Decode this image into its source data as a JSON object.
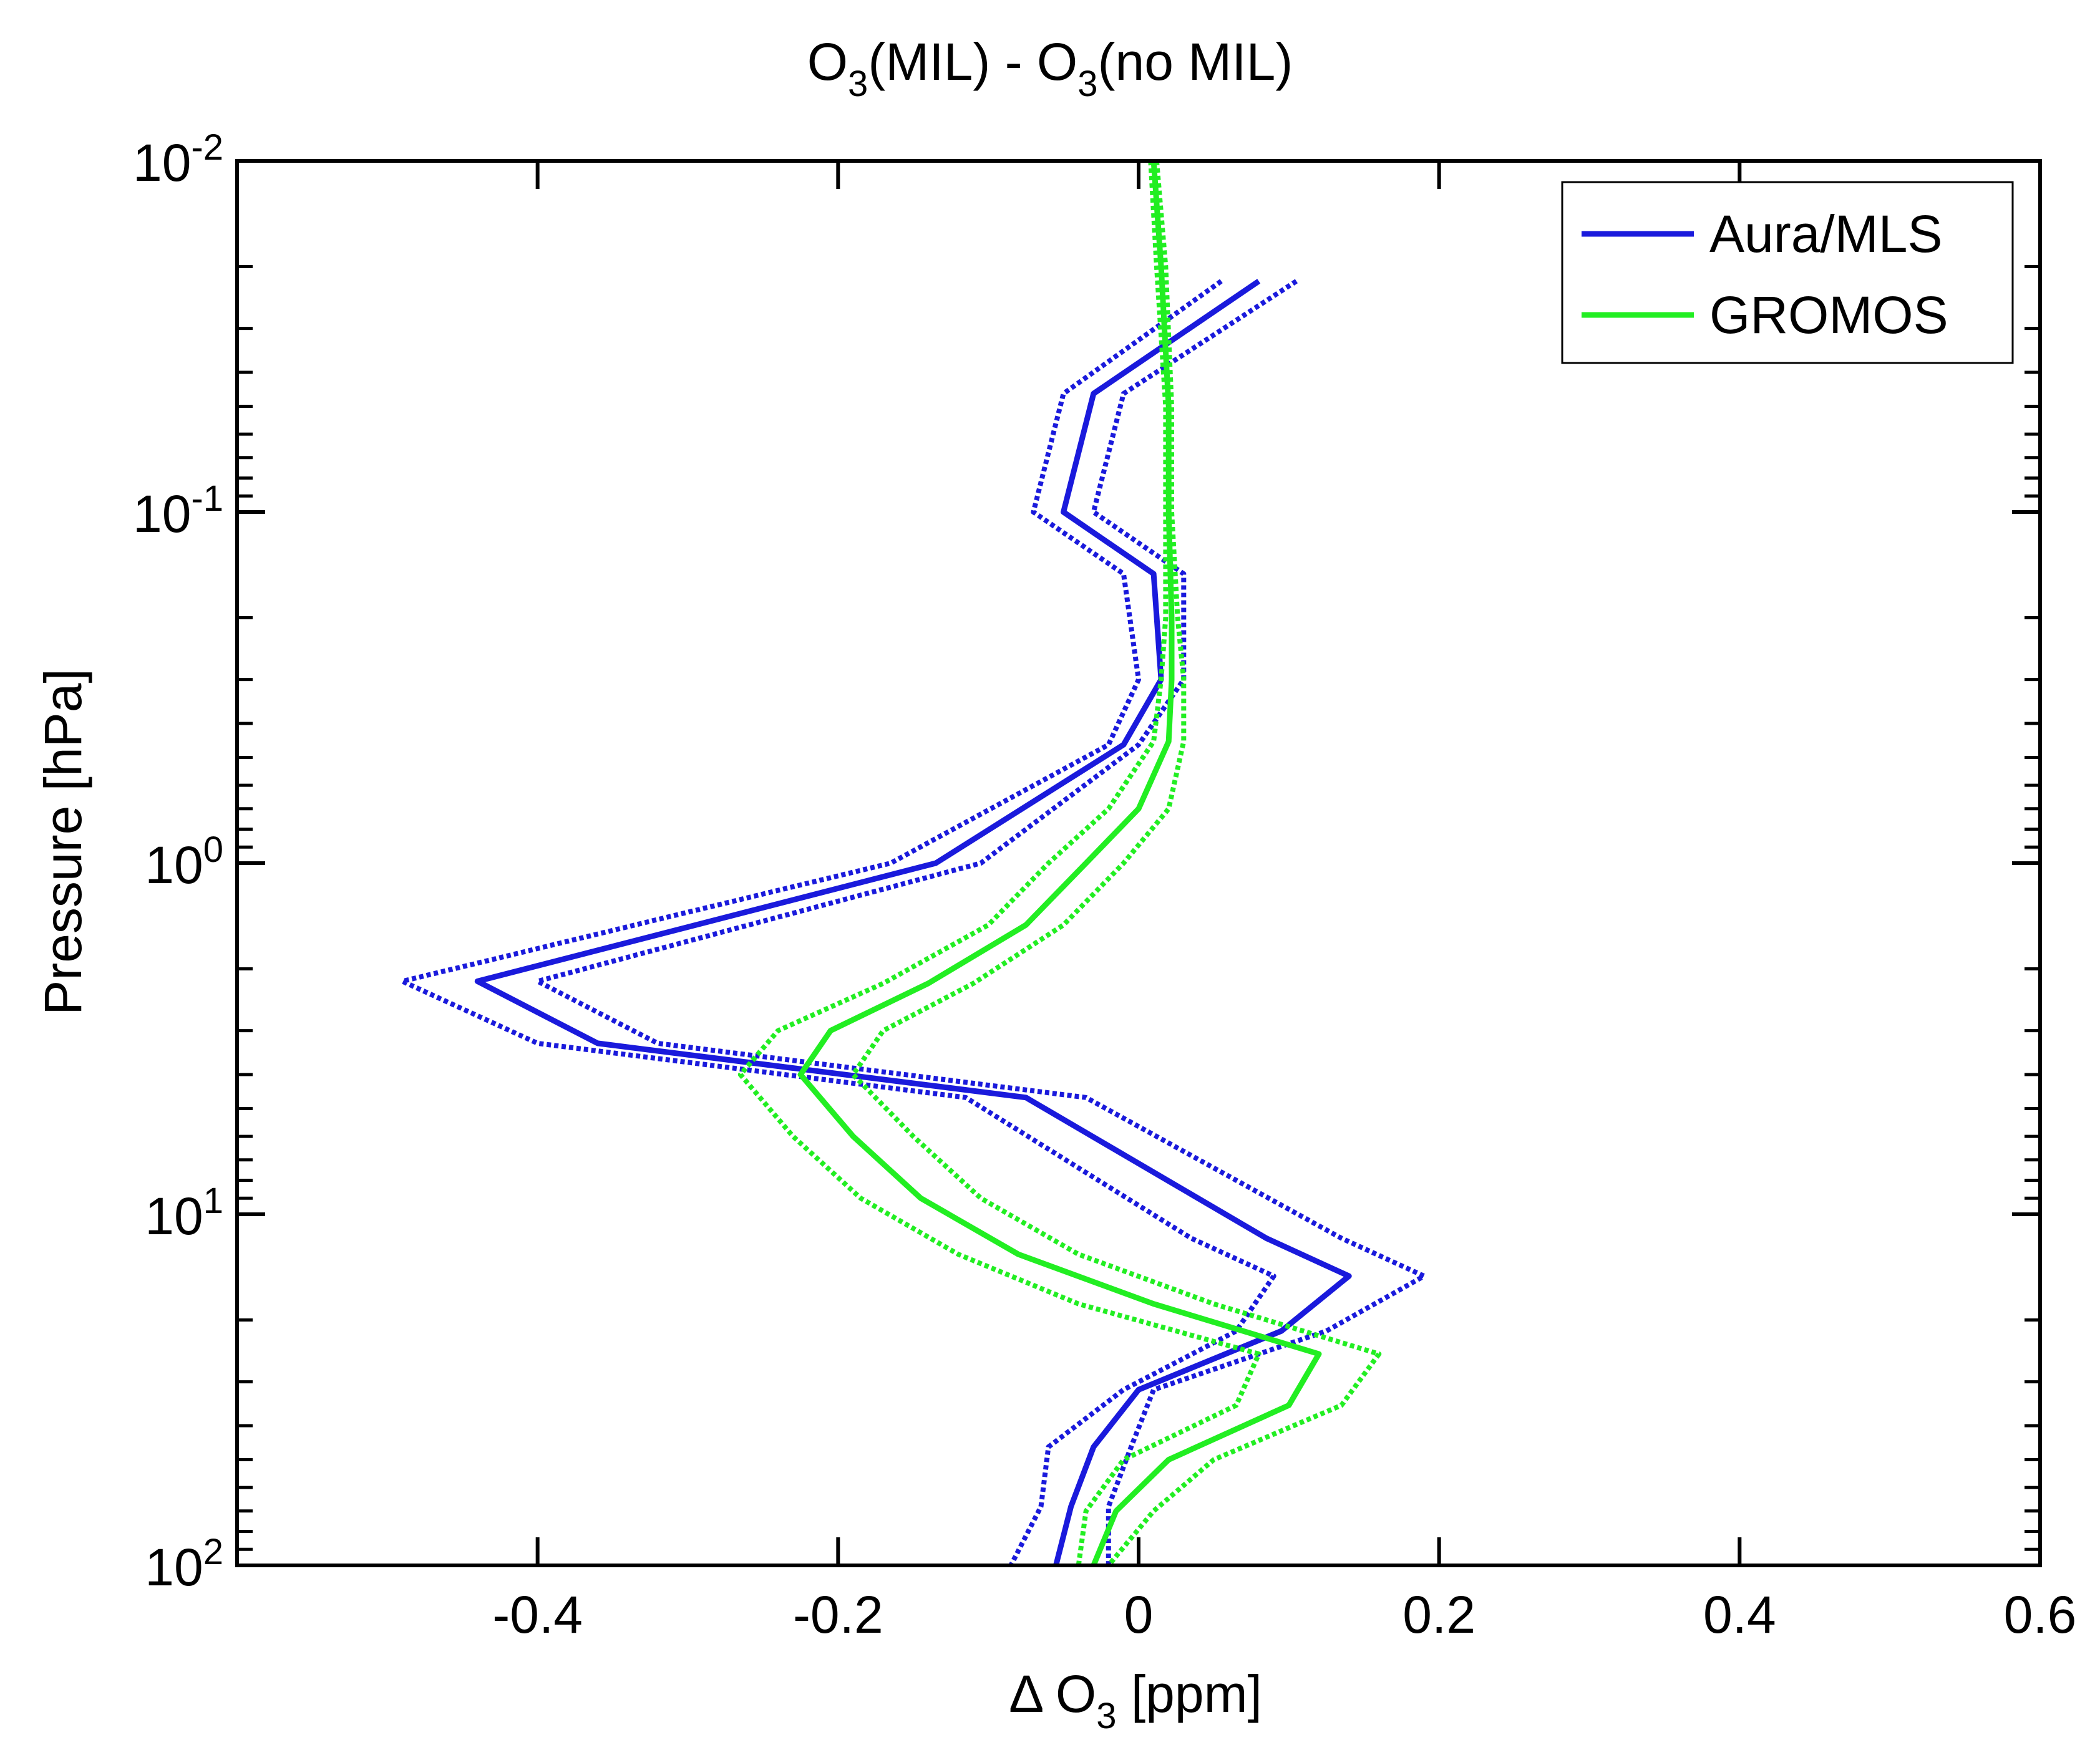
{
  "chart_data": {
    "type": "line",
    "title": {
      "main": "O",
      "sub1": "3",
      "mid": "(MIL) - O",
      "sub2": "3",
      "end": "(no MIL)"
    },
    "xlabel": {
      "main": "Δ O",
      "sub": "3",
      "end": " [ppm]"
    },
    "ylabel": "Pressure [hPa]",
    "xlim": [
      -0.6,
      0.6
    ],
    "ylim": [
      100,
      0.01
    ],
    "yscale": "log",
    "x_ticks": [
      {
        "v": -0.4,
        "label": "-0.4"
      },
      {
        "v": -0.2,
        "label": "-0.2"
      },
      {
        "v": 0,
        "label": "0"
      },
      {
        "v": 0.2,
        "label": "0.2"
      },
      {
        "v": 0.4,
        "label": "0.4"
      },
      {
        "v": 0.6,
        "label": "0.6"
      }
    ],
    "y_ticks": [
      {
        "v": 0.01,
        "base": "10",
        "exp": "-2"
      },
      {
        "v": 0.1,
        "base": "10",
        "exp": "-1"
      },
      {
        "v": 1,
        "base": "10",
        "exp": "0"
      },
      {
        "v": 10,
        "base": "10",
        "exp": "1"
      },
      {
        "v": 100,
        "base": "10",
        "exp": "2"
      }
    ],
    "legend": {
      "position": "top-right",
      "entries": [
        "Aura/MLS",
        "GROMOS"
      ]
    },
    "series": [
      {
        "name": "Aura/MLS",
        "color": "#1a1adc",
        "p": [
          0.022,
          0.046,
          0.1,
          0.15,
          0.3,
          0.46,
          1.0,
          2.17,
          3.26,
          4.65,
          11.7,
          15.0,
          21.5,
          31.6,
          46.0,
          68.0,
          100.0
        ],
        "mean": [
          0.08,
          -0.03,
          -0.05,
          0.01,
          0.015,
          -0.01,
          -0.135,
          -0.44,
          -0.36,
          -0.075,
          0.085,
          0.14,
          0.095,
          0.0,
          -0.03,
          -0.045,
          -0.055
        ],
        "upper": [
          0.105,
          -0.01,
          -0.03,
          0.03,
          0.03,
          0.0,
          -0.105,
          -0.4,
          -0.32,
          -0.035,
          0.135,
          0.19,
          0.125,
          0.01,
          -0.005,
          -0.02,
          -0.02
        ],
        "lower": [
          0.055,
          -0.05,
          -0.07,
          -0.01,
          0.0,
          -0.02,
          -0.165,
          -0.49,
          -0.4,
          -0.115,
          0.035,
          0.09,
          0.065,
          -0.01,
          -0.06,
          -0.065,
          -0.085
        ]
      },
      {
        "name": "GROMOS",
        "color": "#22ee22",
        "p": [
          0.01,
          0.02,
          0.05,
          0.1,
          0.2,
          0.3,
          0.45,
          0.7,
          1.0,
          1.5,
          2.2,
          3.0,
          4.0,
          6.0,
          9.0,
          13.0,
          18.0,
          25.0,
          35.0,
          50.0,
          70.0,
          100.0
        ],
        "mean": [
          0.01,
          0.015,
          0.02,
          0.02,
          0.022,
          0.022,
          0.02,
          0.0,
          -0.035,
          -0.075,
          -0.14,
          -0.205,
          -0.225,
          -0.19,
          -0.145,
          -0.08,
          0.01,
          0.12,
          0.1,
          0.02,
          -0.015,
          -0.03
        ],
        "upper": [
          0.012,
          0.018,
          0.022,
          0.022,
          0.026,
          0.03,
          0.03,
          0.02,
          -0.01,
          -0.05,
          -0.11,
          -0.17,
          -0.19,
          -0.15,
          -0.105,
          -0.04,
          0.05,
          0.16,
          0.135,
          0.05,
          0.01,
          -0.02
        ],
        "lower": [
          0.008,
          0.012,
          0.018,
          0.018,
          0.018,
          0.015,
          0.01,
          -0.02,
          -0.06,
          -0.1,
          -0.17,
          -0.24,
          -0.265,
          -0.23,
          -0.185,
          -0.12,
          -0.04,
          0.08,
          0.065,
          -0.01,
          -0.035,
          -0.04
        ]
      }
    ]
  }
}
